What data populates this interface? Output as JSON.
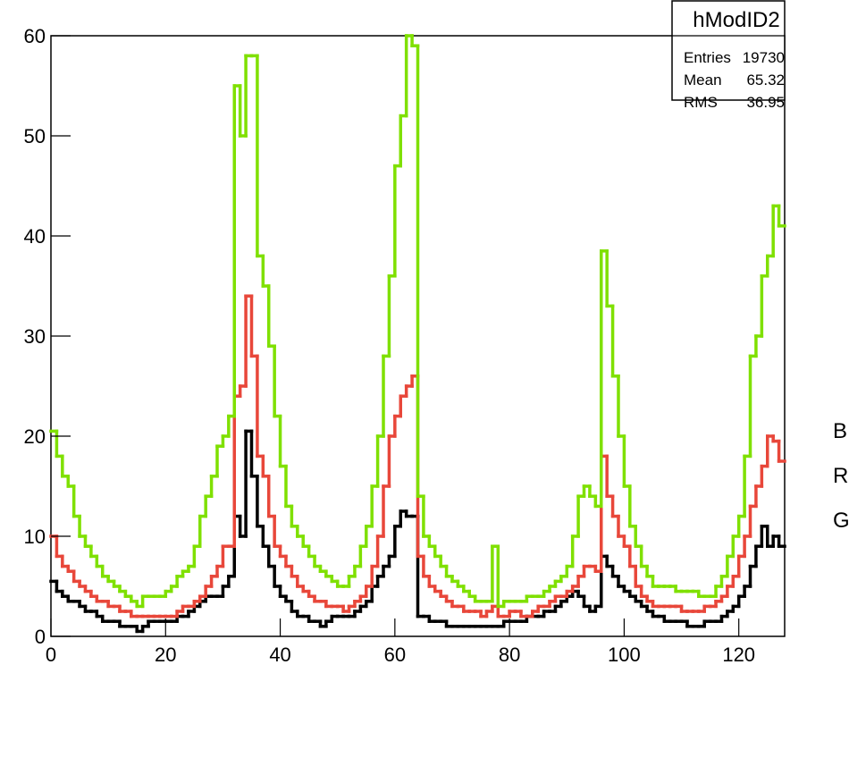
{
  "chart_data": {
    "type": "histogram",
    "bins": [
      0,
      1,
      2,
      3,
      4,
      5,
      6,
      7,
      8,
      9,
      10,
      11,
      12,
      13,
      14,
      15,
      16,
      17,
      18,
      19,
      20,
      21,
      22,
      23,
      24,
      25,
      26,
      27,
      28,
      29,
      30,
      31,
      32,
      33,
      34,
      35,
      36,
      37,
      38,
      39,
      40,
      41,
      42,
      43,
      44,
      45,
      46,
      47,
      48,
      49,
      50,
      51,
      52,
      53,
      54,
      55,
      56,
      57,
      58,
      59,
      60,
      61,
      62,
      63,
      64,
      65,
      66,
      67,
      68,
      69,
      70,
      71,
      72,
      73,
      74,
      75,
      76,
      77,
      78,
      79,
      80,
      81,
      82,
      83,
      84,
      85,
      86,
      87,
      88,
      89,
      90,
      91,
      92,
      93,
      94,
      95,
      96,
      97,
      98,
      99,
      100,
      101,
      102,
      103,
      104,
      105,
      106,
      107,
      108,
      109,
      110,
      111,
      112,
      113,
      114,
      115,
      116,
      117,
      118,
      119,
      120,
      121,
      122,
      123,
      124,
      125,
      126,
      127,
      128
    ],
    "series": [
      {
        "name": "B",
        "color": "#000000",
        "values": [
          5.5,
          4.5,
          4,
          3.5,
          3.5,
          3,
          2.5,
          2.5,
          2,
          1.5,
          1.5,
          1.5,
          1,
          1,
          1,
          0.5,
          1,
          1.5,
          1.5,
          1.5,
          1.5,
          1.5,
          2,
          2,
          2.5,
          3,
          3.5,
          4,
          4,
          4,
          5,
          6,
          12,
          10,
          20.5,
          16,
          11,
          9,
          7,
          5,
          4,
          3.5,
          2.5,
          2,
          2,
          1.5,
          1.5,
          1,
          1.5,
          2,
          2,
          2,
          2,
          2.5,
          3,
          3.5,
          5,
          6,
          7,
          8,
          11,
          12.5,
          12,
          12,
          2,
          2,
          1.5,
          1.5,
          1.5,
          1,
          1,
          1,
          1,
          1,
          1,
          1,
          1,
          1,
          1,
          1.5,
          1.5,
          1.5,
          1.5,
          2,
          2,
          2,
          2.5,
          2.5,
          3,
          3.5,
          4,
          4.5,
          4,
          3,
          2.5,
          3,
          8,
          7,
          6,
          5,
          4.5,
          4,
          3.5,
          3,
          2.5,
          2,
          2,
          1.5,
          1.5,
          1.5,
          1.5,
          1,
          1,
          1,
          1.5,
          1.5,
          1.5,
          2,
          2.5,
          3,
          4,
          5,
          7,
          9,
          11,
          9,
          10,
          9
        ]
      },
      {
        "name": "R",
        "color": "#e8473a",
        "values": [
          10,
          8,
          7,
          6.5,
          5.5,
          5,
          4.5,
          4,
          3.5,
          3.5,
          3,
          3,
          2.5,
          2.5,
          2,
          2,
          2,
          2,
          2,
          2,
          2,
          2,
          2.5,
          3,
          3,
          3.5,
          4,
          5,
          6,
          7,
          9,
          9,
          24,
          25,
          34,
          28,
          18,
          16,
          12,
          9,
          8,
          7,
          6,
          5,
          4.5,
          4,
          3.5,
          3.5,
          3,
          3,
          3,
          2.5,
          3,
          3.5,
          4,
          5,
          7,
          10,
          15,
          20,
          22,
          24,
          25,
          26,
          8,
          6,
          5,
          4.5,
          4,
          3.5,
          3,
          3,
          2.5,
          2.5,
          2.5,
          2,
          2.5,
          3,
          2,
          2,
          2.5,
          2.5,
          2,
          2,
          2.5,
          3,
          3,
          3.5,
          4,
          4,
          4.5,
          5,
          6,
          7,
          7,
          6.5,
          18,
          14,
          12,
          10,
          9,
          7,
          5,
          4,
          3.5,
          3,
          3,
          3,
          3,
          3,
          2.5,
          2.5,
          2.5,
          2.5,
          3,
          3,
          3.5,
          4,
          5,
          6,
          8,
          10,
          13,
          15,
          17,
          20,
          19.5,
          17.5
        ]
      },
      {
        "name": "G",
        "color": "#7fe000",
        "values": [
          20.5,
          18,
          16,
          15,
          12,
          10,
          9,
          8,
          7,
          6,
          5.5,
          5,
          4.5,
          4,
          3.5,
          3,
          4,
          4,
          4,
          4,
          4.5,
          5,
          6,
          6.5,
          7,
          9,
          12,
          14,
          16,
          19,
          20,
          22,
          55,
          50,
          58,
          58,
          38,
          35,
          29,
          22,
          17,
          13,
          11,
          10,
          9,
          8,
          7,
          6.5,
          6,
          5.5,
          5,
          5,
          6,
          7,
          9,
          11,
          15,
          20,
          28,
          36,
          47,
          52,
          60,
          59,
          14,
          10,
          9,
          8,
          7,
          6,
          5.5,
          5,
          4.5,
          4,
          3.5,
          3.5,
          3.5,
          9,
          3,
          3.5,
          3.5,
          3.5,
          3.5,
          4,
          4,
          4,
          4.5,
          5,
          5.5,
          6,
          7,
          10,
          14,
          15,
          14,
          13,
          38.5,
          33,
          26,
          20,
          15,
          11,
          9,
          7,
          6,
          5,
          5,
          5,
          5,
          4.5,
          4.5,
          4.5,
          4.5,
          4,
          4,
          4,
          5,
          6,
          8,
          10,
          12,
          18,
          28,
          30,
          36,
          38,
          43,
          41
        ]
      }
    ],
    "xlim": [
      0,
      128
    ],
    "ylim": [
      0,
      60
    ],
    "xticks": [
      0,
      20,
      40,
      60,
      80,
      100,
      120
    ],
    "yticks": [
      0,
      10,
      20,
      30,
      40,
      50,
      60
    ],
    "stats_box": {
      "title": "hModID2",
      "rows": [
        [
          "Entries",
          "19730"
        ],
        [
          "Mean",
          "65.32"
        ],
        [
          "RMS",
          "36.95"
        ]
      ]
    }
  }
}
